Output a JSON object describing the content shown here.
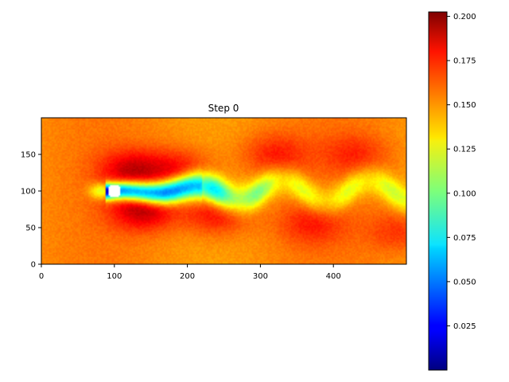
{
  "chart_data": {
    "type": "heatmap",
    "title": "Step 0",
    "xlabel": "",
    "ylabel": "",
    "x_range": [
      0,
      500
    ],
    "y_range": [
      0,
      200
    ],
    "x_ticks": [
      0,
      100,
      200,
      300,
      400
    ],
    "x_tick_labels": [
      "0",
      "100",
      "200",
      "300",
      "400"
    ],
    "y_ticks": [
      0,
      50,
      100,
      150
    ],
    "y_tick_labels": [
      "0",
      "50",
      "100",
      "150"
    ],
    "colormap": "jet",
    "colorbar": {
      "range": [
        0.0,
        0.2025
      ],
      "ticks": [
        0.025,
        0.05,
        0.075,
        0.1,
        0.125,
        0.15,
        0.175,
        0.2
      ],
      "tick_labels": [
        "0.025",
        "0.050",
        "0.075",
        "0.100",
        "0.125",
        "0.150",
        "0.175",
        "0.200"
      ]
    },
    "field": {
      "freestream_value": 0.15,
      "obstacle": {
        "shape": "circle",
        "center": [
          100,
          100
        ],
        "radius": 9,
        "color": "#ffffff"
      },
      "wake_min_value": 0.03,
      "vortex_street_start_x": 180,
      "vortex_wavelength": 120,
      "high_value_patches": [
        {
          "x": 125,
          "y": 128,
          "value": 0.185
        },
        {
          "x": 140,
          "y": 75,
          "value": 0.19
        },
        {
          "x": 190,
          "y": 130,
          "value": 0.175
        },
        {
          "x": 240,
          "y": 68,
          "value": 0.178
        },
        {
          "x": 320,
          "y": 150,
          "value": 0.172
        },
        {
          "x": 370,
          "y": 55,
          "value": 0.17
        },
        {
          "x": 430,
          "y": 150,
          "value": 0.168
        },
        {
          "x": 490,
          "y": 45,
          "value": 0.168
        }
      ]
    }
  }
}
